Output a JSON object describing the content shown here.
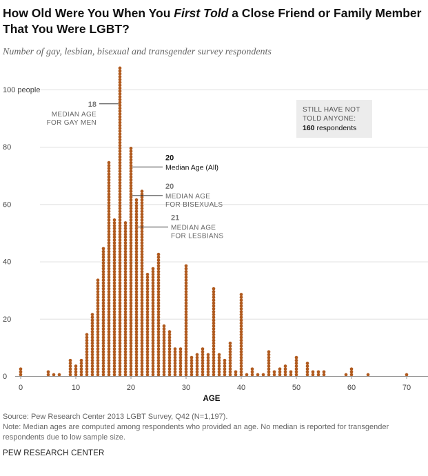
{
  "header": {
    "title_part1": "How Old Were You When You ",
    "title_emph": "First Told",
    "title_part2": " a Close Friend or Family Member That You Were LGBT?",
    "subtitle": "Number of gay, lesbian, bisexual and transgender survey respondents"
  },
  "chart_data": {
    "type": "bar",
    "style": "stacked dots",
    "xlabel": "AGE",
    "ylabel": "",
    "x_ticks": [
      "0",
      "10",
      "20",
      "30",
      "40",
      "50",
      "60",
      "70"
    ],
    "y_ticks": [
      "0",
      "20",
      "40",
      "60",
      "80",
      "100 people"
    ],
    "xlim": [
      0,
      70
    ],
    "ylim": [
      0,
      108
    ],
    "color": "#b05a1e",
    "x": [
      0,
      5,
      6,
      7,
      9,
      10,
      11,
      12,
      13,
      14,
      15,
      16,
      17,
      18,
      19,
      20,
      21,
      22,
      23,
      24,
      25,
      26,
      27,
      28,
      29,
      30,
      31,
      32,
      33,
      34,
      35,
      36,
      37,
      38,
      39,
      40,
      41,
      42,
      43,
      44,
      45,
      46,
      47,
      48,
      49,
      50,
      52,
      53,
      54,
      55,
      59,
      60,
      63,
      70
    ],
    "values": [
      3,
      2,
      1,
      1,
      6,
      4,
      6,
      15,
      22,
      34,
      45,
      75,
      55,
      108,
      54,
      80,
      62,
      65,
      36,
      38,
      43,
      18,
      16,
      10,
      10,
      39,
      7,
      8,
      10,
      8,
      31,
      8,
      6,
      12,
      2,
      29,
      1,
      3,
      1,
      1,
      9,
      2,
      3,
      4,
      2,
      7,
      5,
      2,
      2,
      2,
      1,
      3,
      1,
      1
    ],
    "annotations": [
      {
        "number": "18",
        "label_lines": [
          "MEDIAN AGE",
          "FOR GAY MEN"
        ],
        "age": 18,
        "level": 95,
        "side": "left"
      },
      {
        "number": "20",
        "label_lines": [
          "Median Age (All)"
        ],
        "age": 20,
        "level": 73,
        "side": "right",
        "emphasis": true
      },
      {
        "number": "20",
        "label_lines": [
          "MEDIAN AGE",
          "FOR BISEXUALS"
        ],
        "age": 20,
        "level": 63,
        "side": "right"
      },
      {
        "number": "21",
        "label_lines": [
          "MEDIAN AGE",
          "FOR LESBIANS"
        ],
        "age": 21,
        "level": 52,
        "side": "right"
      }
    ],
    "callout": {
      "line1": "STILL HAVE NOT",
      "line2": "TOLD ANYONE:",
      "count": "160",
      "count_suffix": " respondents"
    }
  },
  "footer": {
    "source": "Source: Pew Research Center 2013 LGBT Survey, Q42 (N=1,197).",
    "note_line1": "Note: Median ages are computed among respondents who provided an age. No median is reported for transgender",
    "note_line2": "respondents due to low sample size.",
    "brand": "PEW RESEARCH CENTER"
  }
}
